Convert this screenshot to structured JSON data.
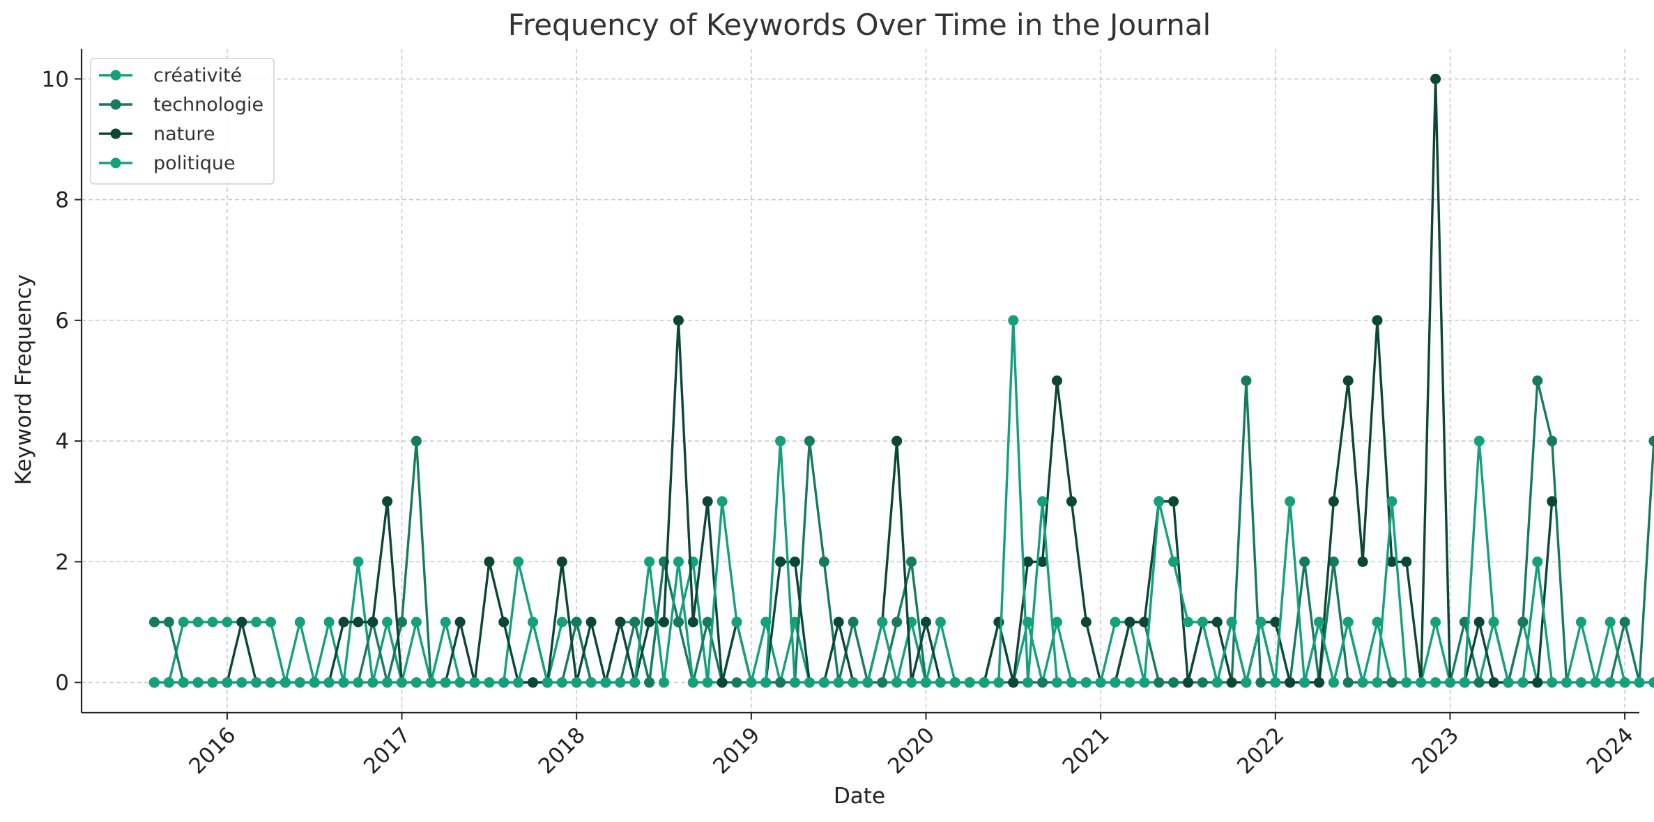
{
  "chart_data": {
    "type": "line",
    "title": "Frequency of Keywords Over Time in the Journal",
    "xlabel": "Date",
    "ylabel": "Keyword Frequency",
    "x_start": "2015-08",
    "x_end": "2023-10",
    "x_axis_ticks": [
      "2016",
      "2017",
      "2018",
      "2019",
      "2020",
      "2021",
      "2022",
      "2023",
      "2024"
    ],
    "y_axis_ticks": [
      0,
      2,
      4,
      6,
      8,
      10
    ],
    "xlim": [
      "2015-03",
      "2024-02"
    ],
    "ylim": [
      -0.5,
      10.5
    ],
    "grid": true,
    "legend_position": "top-left",
    "series": [
      {
        "name": "créativité",
        "color": "#13A07B",
        "values": [
          0,
          0,
          1,
          1,
          1,
          1,
          1,
          1,
          1,
          0,
          1,
          0,
          1,
          0,
          2,
          0,
          1,
          0,
          1,
          0,
          1,
          0,
          0,
          0,
          0,
          2,
          1,
          0,
          1,
          1,
          0,
          0,
          1,
          1,
          0,
          2,
          1,
          2,
          0,
          0,
          1,
          0,
          1,
          0,
          1,
          0,
          0,
          0,
          0,
          0,
          0,
          0,
          1,
          0,
          1,
          0,
          0,
          0,
          1,
          0,
          1,
          0,
          1,
          0,
          0,
          0,
          1,
          1,
          0,
          0,
          0,
          0,
          1,
          0,
          1,
          0,
          1,
          0,
          0,
          0,
          1,
          0,
          1,
          0,
          1,
          0,
          0,
          0,
          1,
          0,
          0,
          0,
          1,
          0,
          1,
          0,
          0,
          0,
          1,
          0,
          1,
          0,
          0,
          0,
          1,
          0,
          1,
          0,
          0,
          0
        ]
      },
      {
        "name": "technologie",
        "color": "#157A5E",
        "values": [
          1,
          1,
          0,
          0,
          0,
          0,
          0,
          0,
          0,
          0,
          0,
          0,
          0,
          0,
          0,
          1,
          0,
          1,
          4,
          0,
          0,
          0,
          0,
          0,
          0,
          0,
          0,
          0,
          0,
          1,
          0,
          0,
          0,
          1,
          0,
          2,
          1,
          0,
          1,
          0,
          0,
          0,
          0,
          0,
          0,
          4,
          2,
          0,
          1,
          0,
          0,
          1,
          2,
          0,
          0,
          0,
          0,
          0,
          0,
          0,
          0,
          0,
          0,
          0,
          0,
          0,
          0,
          1,
          1,
          0,
          0,
          0,
          0,
          0,
          0,
          5,
          0,
          0,
          0,
          2,
          0,
          2,
          0,
          0,
          0,
          0,
          0,
          0,
          0,
          0,
          1,
          0,
          0,
          0,
          1,
          5,
          4,
          0,
          0,
          0,
          0,
          1,
          0,
          4,
          0,
          0,
          0,
          1,
          1,
          0,
          0
        ]
      },
      {
        "name": "nature",
        "color": "#0B4636",
        "values": [
          0,
          0,
          0,
          0,
          0,
          0,
          1,
          0,
          0,
          0,
          0,
          0,
          0,
          1,
          1,
          1,
          3,
          0,
          0,
          0,
          0,
          1,
          0,
          2,
          1,
          0,
          0,
          0,
          2,
          0,
          1,
          0,
          1,
          0,
          1,
          1,
          6,
          1,
          3,
          0,
          1,
          0,
          0,
          2,
          2,
          0,
          0,
          1,
          0,
          0,
          1,
          4,
          0,
          1,
          0,
          0,
          0,
          0,
          1,
          0,
          2,
          2,
          5,
          3,
          1,
          0,
          0,
          1,
          1,
          3,
          3,
          0,
          1,
          1,
          0,
          0,
          1,
          1,
          0,
          0,
          0,
          3,
          5,
          2,
          6,
          2,
          2,
          0,
          10,
          0,
          0,
          1,
          0,
          0,
          0,
          0,
          3
        ]
      },
      {
        "name": "politique",
        "color": "#13A07B",
        "values": [
          0,
          0,
          0,
          0,
          0,
          0,
          0,
          0,
          0,
          0,
          0,
          0,
          0,
          0,
          0,
          0,
          0,
          0,
          0,
          0,
          0,
          0,
          0,
          0,
          0,
          0,
          1,
          0,
          0,
          0,
          0,
          0,
          0,
          0,
          2,
          0,
          2,
          0,
          0,
          3,
          1,
          0,
          0,
          4,
          0,
          0,
          0,
          0,
          0,
          0,
          1,
          0,
          0,
          0,
          0,
          0,
          0,
          0,
          0,
          6,
          0,
          3,
          0,
          0,
          0,
          0,
          0,
          0,
          0,
          3,
          2,
          1,
          1,
          0,
          1,
          0,
          1,
          0,
          3,
          0,
          1,
          0,
          1,
          0,
          0,
          3,
          0,
          0,
          0,
          0,
          0,
          4,
          1,
          0,
          0,
          2,
          0,
          0,
          0,
          0,
          0,
          0,
          0,
          0,
          0,
          2
        ]
      }
    ]
  }
}
